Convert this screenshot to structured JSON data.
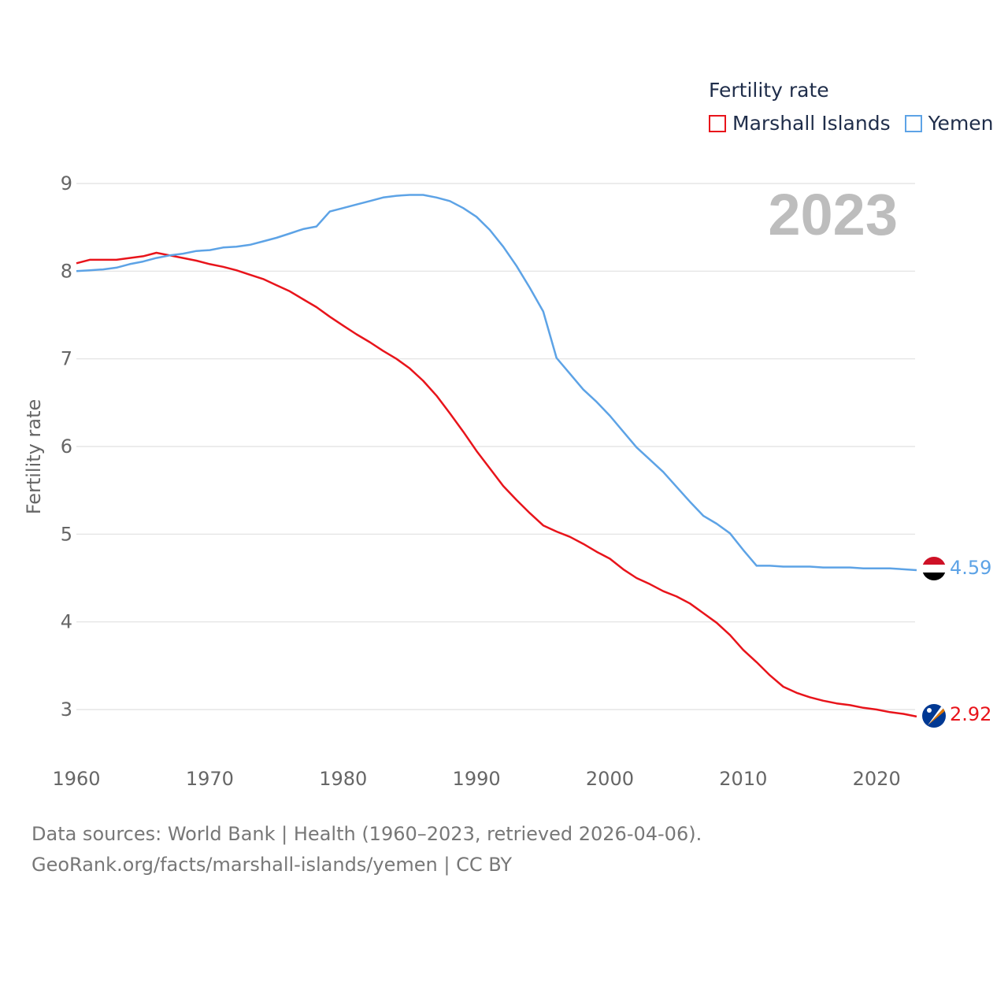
{
  "legend": {
    "title": "Fertility rate",
    "items": [
      {
        "label": "Marshall Islands",
        "color": "#e8141b"
      },
      {
        "label": "Yemen",
        "color": "#5da3e6"
      }
    ]
  },
  "source": {
    "line1": "Data sources: World Bank | Health (1960–2023, retrieved 2026-04-06).",
    "line2": "GeoRank.org/facts/marshall-islands/yemen | CC BY"
  },
  "chart_data": {
    "type": "line",
    "title": "Fertility rate",
    "year_label": "2023",
    "xlabel": "",
    "ylabel": "Fertility rate",
    "xlim": [
      1960,
      2023
    ],
    "ylim": [
      2.5,
      9.2
    ],
    "yticks": [
      3,
      4,
      5,
      6,
      7,
      8,
      9
    ],
    "xticks": [
      1960,
      1970,
      1980,
      1990,
      2000,
      2010,
      2020
    ],
    "grid": true,
    "series": [
      {
        "name": "Marshall Islands",
        "color": "#e8141b",
        "end_label": "2.92",
        "flag": "marshall-islands-flag-icon",
        "x": [
          1960,
          1961,
          1962,
          1963,
          1964,
          1965,
          1966,
          1967,
          1968,
          1969,
          1970,
          1971,
          1972,
          1973,
          1974,
          1975,
          1976,
          1977,
          1978,
          1979,
          1980,
          1981,
          1982,
          1983,
          1984,
          1985,
          1986,
          1987,
          1988,
          1989,
          1990,
          1991,
          1992,
          1993,
          1994,
          1995,
          1996,
          1997,
          1998,
          1999,
          2000,
          2001,
          2002,
          2003,
          2004,
          2005,
          2006,
          2007,
          2008,
          2009,
          2010,
          2011,
          2012,
          2013,
          2014,
          2015,
          2016,
          2017,
          2018,
          2019,
          2020,
          2021,
          2022,
          2023
        ],
        "values": [
          8.09,
          8.13,
          8.13,
          8.13,
          8.15,
          8.17,
          8.21,
          8.18,
          8.15,
          8.12,
          8.08,
          8.05,
          8.01,
          7.96,
          7.91,
          7.84,
          7.77,
          7.68,
          7.59,
          7.48,
          7.38,
          7.28,
          7.19,
          7.09,
          7.0,
          6.89,
          6.75,
          6.58,
          6.38,
          6.17,
          5.95,
          5.75,
          5.55,
          5.39,
          5.24,
          5.1,
          5.03,
          4.97,
          4.89,
          4.8,
          4.72,
          4.6,
          4.5,
          4.43,
          4.35,
          4.29,
          4.21,
          4.1,
          3.99,
          3.85,
          3.68,
          3.54,
          3.39,
          3.26,
          3.19,
          3.14,
          3.1,
          3.07,
          3.05,
          3.02,
          3.0,
          2.97,
          2.95,
          2.92
        ]
      },
      {
        "name": "Yemen",
        "color": "#5da3e6",
        "end_label": "4.59",
        "flag": "yemen-flag-icon",
        "x": [
          1960,
          1961,
          1962,
          1963,
          1964,
          1965,
          1966,
          1967,
          1968,
          1969,
          1970,
          1971,
          1972,
          1973,
          1974,
          1975,
          1976,
          1977,
          1978,
          1979,
          1980,
          1981,
          1982,
          1983,
          1984,
          1985,
          1986,
          1987,
          1988,
          1989,
          1990,
          1991,
          1992,
          1993,
          1994,
          1995,
          1996,
          1997,
          1998,
          1999,
          2000,
          2001,
          2002,
          2003,
          2004,
          2005,
          2006,
          2007,
          2008,
          2009,
          2010,
          2011,
          2012,
          2013,
          2014,
          2015,
          2016,
          2017,
          2018,
          2019,
          2020,
          2021,
          2022,
          2023
        ],
        "values": [
          8.0,
          8.01,
          8.02,
          8.04,
          8.08,
          8.11,
          8.15,
          8.18,
          8.2,
          8.23,
          8.24,
          8.27,
          8.28,
          8.3,
          8.34,
          8.38,
          8.43,
          8.48,
          8.51,
          8.68,
          8.72,
          8.76,
          8.8,
          8.84,
          8.86,
          8.87,
          8.87,
          8.84,
          8.8,
          8.72,
          8.62,
          8.47,
          8.28,
          8.06,
          7.81,
          7.54,
          7.01,
          6.83,
          6.65,
          6.51,
          6.35,
          6.17,
          5.99,
          5.85,
          5.71,
          5.54,
          5.37,
          5.21,
          5.12,
          5.01,
          4.82,
          4.64,
          4.64,
          4.63,
          4.63,
          4.63,
          4.62,
          4.62,
          4.62,
          4.61,
          4.61,
          4.61,
          4.6,
          4.59
        ]
      }
    ]
  }
}
